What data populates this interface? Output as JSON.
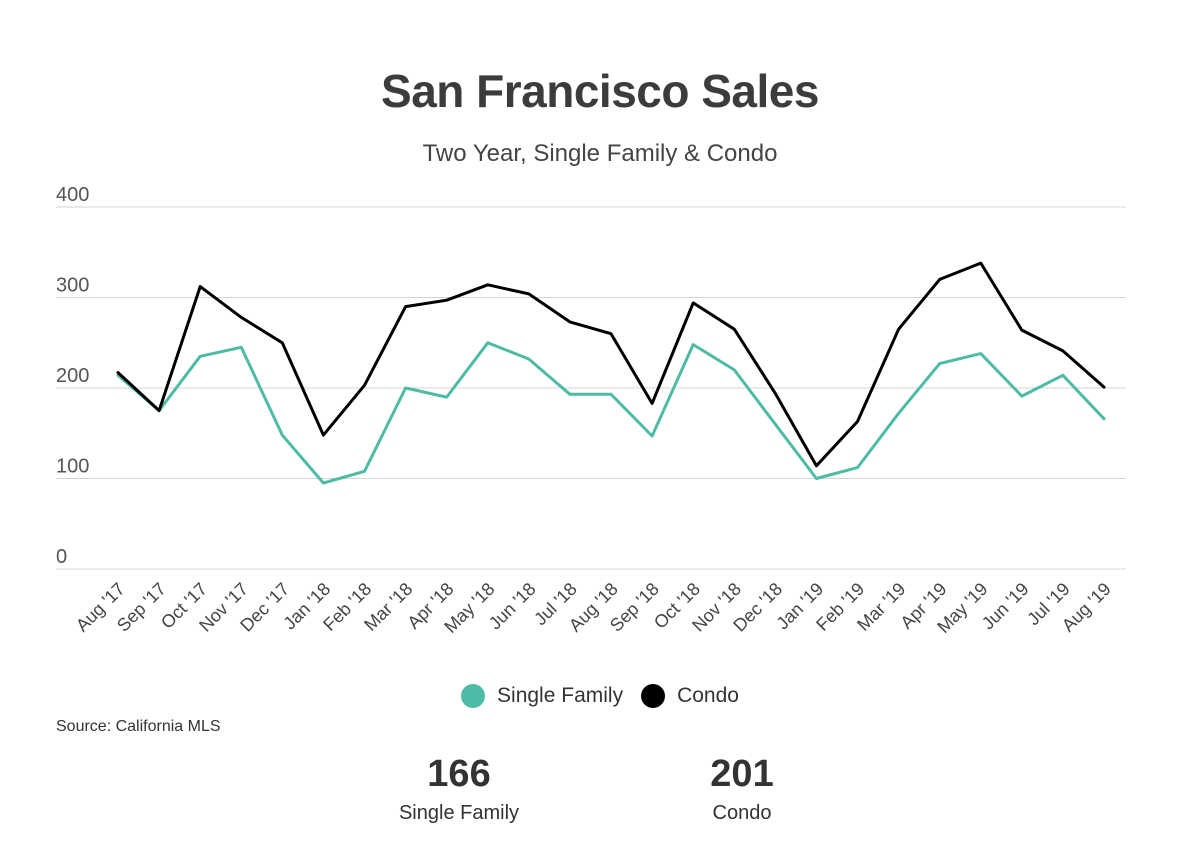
{
  "header": {
    "title": "San Francisco Sales",
    "subtitle": "Two Year, Single Family & Condo"
  },
  "source": "Source:  California MLS",
  "stats": [
    {
      "value": "166",
      "label": "Single Family"
    },
    {
      "value": "201",
      "label": "Condo"
    }
  ],
  "chart_data": {
    "type": "line",
    "title": "San Francisco Sales",
    "subtitle": "Two Year, Single Family & Condo",
    "xlabel": "",
    "ylabel": "",
    "ylim": [
      0,
      400
    ],
    "yticks": [
      0,
      100,
      200,
      300,
      400
    ],
    "grid": true,
    "legend_position": "bottom",
    "categories": [
      "Aug '17",
      "Sep '17",
      "Oct '17",
      "Nov '17",
      "Dec '17",
      "Jan '18",
      "Feb '18",
      "Mar '18",
      "Apr '18",
      "May '18",
      "Jun '18",
      "Jul '18",
      "Aug '18",
      "Sep '18",
      "Oct '18",
      "Nov '18",
      "Dec '18",
      "Jan '19",
      "Feb '19",
      "Mar '19",
      "Apr '19",
      "May '19",
      "Jun '19",
      "Jul '19",
      "Aug '19"
    ],
    "series": [
      {
        "name": "Single Family",
        "color": "#4dbba5",
        "values": [
          214,
          175,
          235,
          245,
          148,
          95,
          108,
          200,
          190,
          250,
          232,
          193,
          193,
          147,
          248,
          220,
          160,
          100,
          112,
          172,
          227,
          238,
          191,
          214,
          166
        ]
      },
      {
        "name": "Condo",
        "color": "#000000",
        "values": [
          217,
          175,
          312,
          278,
          250,
          148,
          203,
          290,
          297,
          314,
          304,
          273,
          260,
          183,
          294,
          265,
          194,
          114,
          163,
          265,
          320,
          338,
          264,
          241,
          201
        ]
      }
    ]
  }
}
